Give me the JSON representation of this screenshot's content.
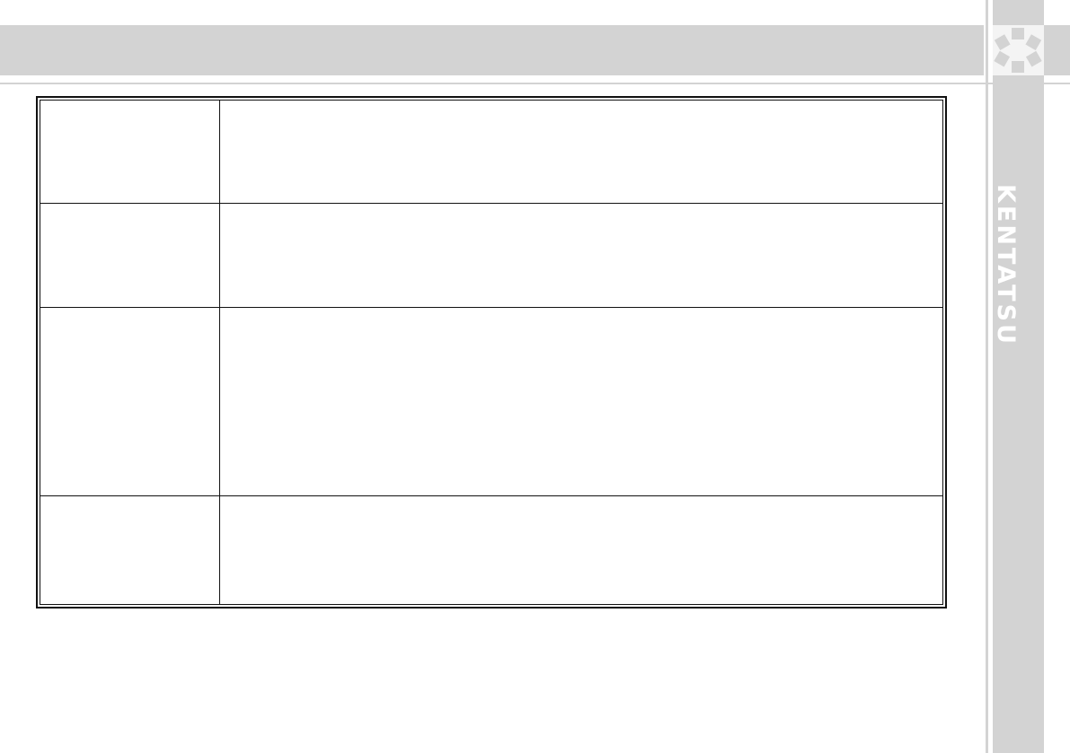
{
  "brand": {
    "name": "KENTATSU",
    "logo_icon": "flower-hexagon-logo-icon"
  },
  "colors": {
    "band": "#d3d3d3",
    "border": "#111111"
  },
  "table": {
    "rows": [
      {
        "label": "",
        "value": ""
      },
      {
        "label": "",
        "value": ""
      },
      {
        "label": "",
        "value": ""
      },
      {
        "label": "",
        "value": ""
      }
    ]
  }
}
